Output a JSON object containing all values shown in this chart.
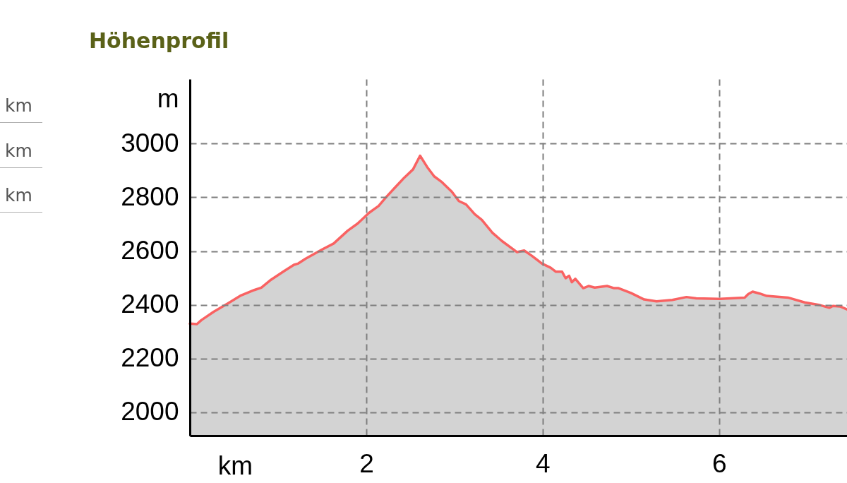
{
  "chart_data": {
    "type": "area",
    "title": "Höhenprofil",
    "xlabel": "km",
    "ylabel": "m",
    "annotations": [
      "km",
      "km",
      "km"
    ],
    "x": [
      0,
      0.08,
      0.13,
      0.27,
      0.43,
      0.58,
      0.73,
      0.81,
      0.91,
      1.07,
      1.18,
      1.23,
      1.31,
      1.5,
      1.63,
      1.79,
      1.9,
      2.03,
      2.14,
      2.22,
      2.33,
      2.43,
      2.53,
      2.61,
      2.69,
      2.77,
      2.86,
      2.97,
      3.05,
      3.13,
      3.23,
      3.31,
      3.43,
      3.54,
      3.71,
      3.79,
      3.87,
      3.99,
      4.09,
      4.15,
      4.22,
      4.26,
      4.3,
      4.33,
      4.37,
      4.46,
      4.52,
      4.59,
      4.73,
      4.81,
      4.86,
      5.0,
      5.15,
      5.29,
      5.47,
      5.63,
      5.74,
      6.01,
      6.29,
      6.33,
      6.38,
      6.46,
      6.54,
      6.78,
      6.97,
      7.13,
      7.25,
      7.29,
      7.37,
      7.45
    ],
    "values": [
      2330,
      2328,
      2343,
      2374,
      2405,
      2435,
      2455,
      2464,
      2491,
      2526,
      2549,
      2554,
      2571,
      2606,
      2628,
      2676,
      2702,
      2742,
      2768,
      2799,
      2838,
      2873,
      2904,
      2955,
      2913,
      2878,
      2856,
      2821,
      2786,
      2774,
      2737,
      2716,
      2668,
      2637,
      2596,
      2602,
      2584,
      2554,
      2538,
      2523,
      2523,
      2499,
      2508,
      2484,
      2497,
      2462,
      2470,
      2464,
      2470,
      2462,
      2462,
      2444,
      2420,
      2413,
      2418,
      2429,
      2424,
      2422,
      2427,
      2440,
      2449,
      2442,
      2433,
      2427,
      2409,
      2400,
      2389,
      2396,
      2394,
      2383
    ],
    "color": "#f96262",
    "xlim": [
      0,
      7.45
    ],
    "xticks": [
      2,
      4,
      6
    ],
    "ylim": [
      1913,
      3240
    ],
    "yticks": [
      2000,
      2200,
      2400,
      2600,
      2800,
      3000
    ],
    "grid": true
  }
}
